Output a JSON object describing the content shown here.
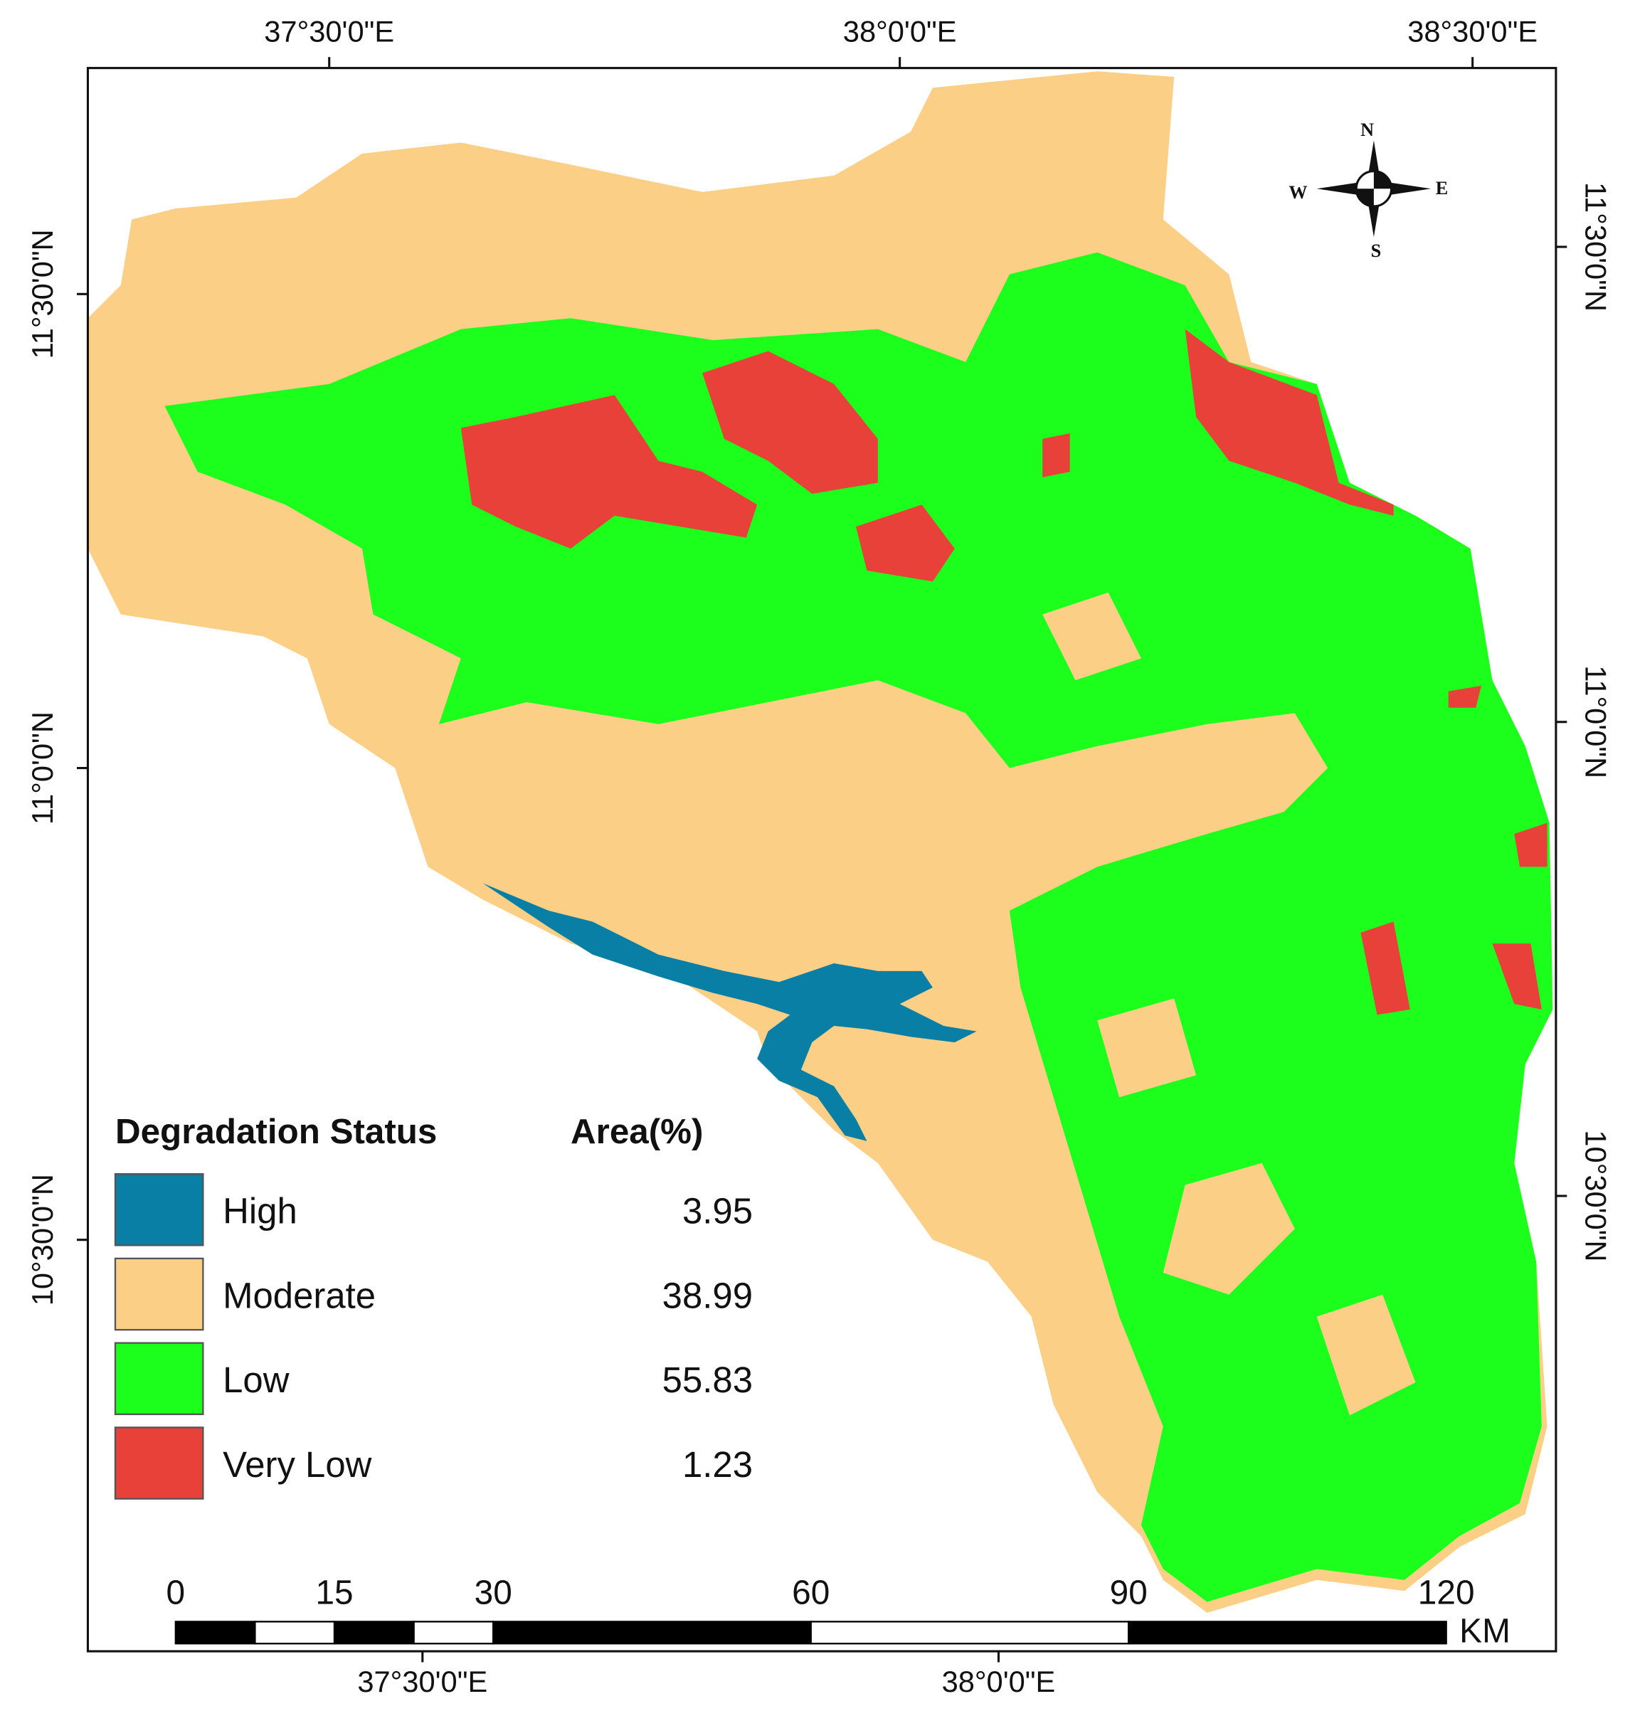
{
  "map": {
    "graticule": {
      "top": [
        "37°30'0\"E",
        "38°0'0\"E",
        "38°30'0\"E"
      ],
      "bottom": [
        "37°30'0\"E",
        "38°0'0\"E"
      ],
      "left": [
        "11°30'0\"N",
        "11°0'0\"N",
        "10°30'0\"N"
      ],
      "right": [
        "11°30'0\"N",
        "11°0'0\"N",
        "10°30'0\"N"
      ]
    },
    "compass": {
      "n": "N",
      "e": "E",
      "s": "S",
      "w": "W"
    },
    "legend": {
      "title": "Degradation Status",
      "value_header": "Area(%)",
      "items": [
        {
          "label": "High",
          "color": "#0a7fa6",
          "area": 3.95
        },
        {
          "label": "Moderate",
          "color": "#fccf87",
          "area": 38.99
        },
        {
          "label": "Low",
          "color": "#1cff1c",
          "area": 55.83
        },
        {
          "label": "Very Low",
          "color": "#e8413a",
          "area": 1.23
        }
      ]
    },
    "scale_bar": {
      "ticks": [
        0,
        15,
        30,
        60,
        90,
        120
      ],
      "unit": "KM"
    }
  }
}
